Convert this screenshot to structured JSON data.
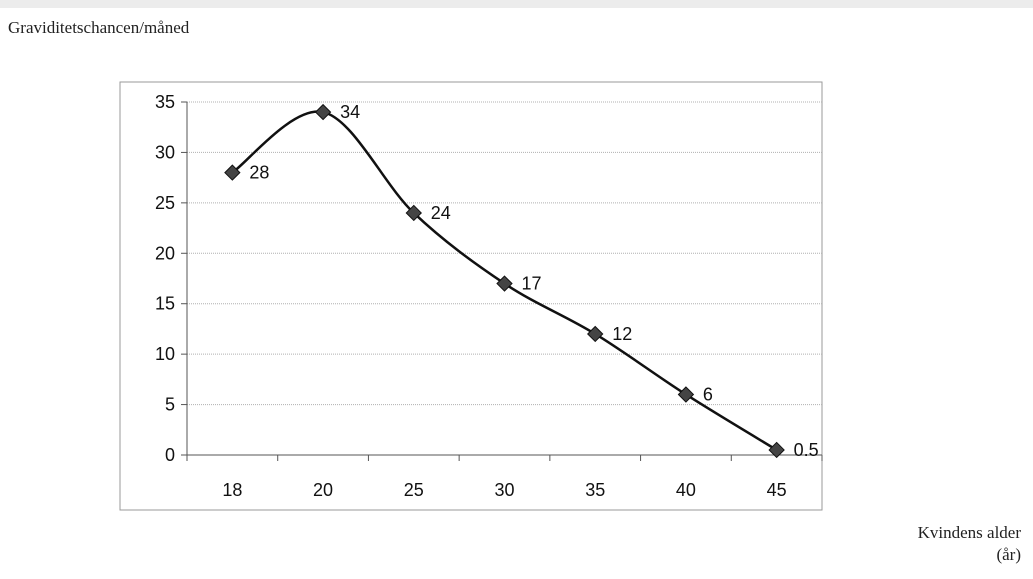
{
  "chart_data": {
    "type": "line",
    "title": "",
    "ylabel": "Graviditetschancen/måned",
    "xlabel_line1": "Kvindens alder",
    "xlabel_line2": "(år)",
    "categories": [
      "18",
      "20",
      "25",
      "30",
      "35",
      "40",
      "45"
    ],
    "series": [
      {
        "values": [
          28,
          34,
          24,
          17,
          12,
          6,
          0.5
        ]
      }
    ],
    "data_labels": [
      "28",
      "34",
      "24",
      "17",
      "12",
      "6",
      "0.5"
    ],
    "ylim": [
      0,
      35
    ],
    "yticks": [
      0,
      5,
      10,
      15,
      20,
      25,
      30,
      35
    ],
    "grid": true,
    "marker": "diamond",
    "line_color": "#111111",
    "marker_color": "#444444"
  }
}
